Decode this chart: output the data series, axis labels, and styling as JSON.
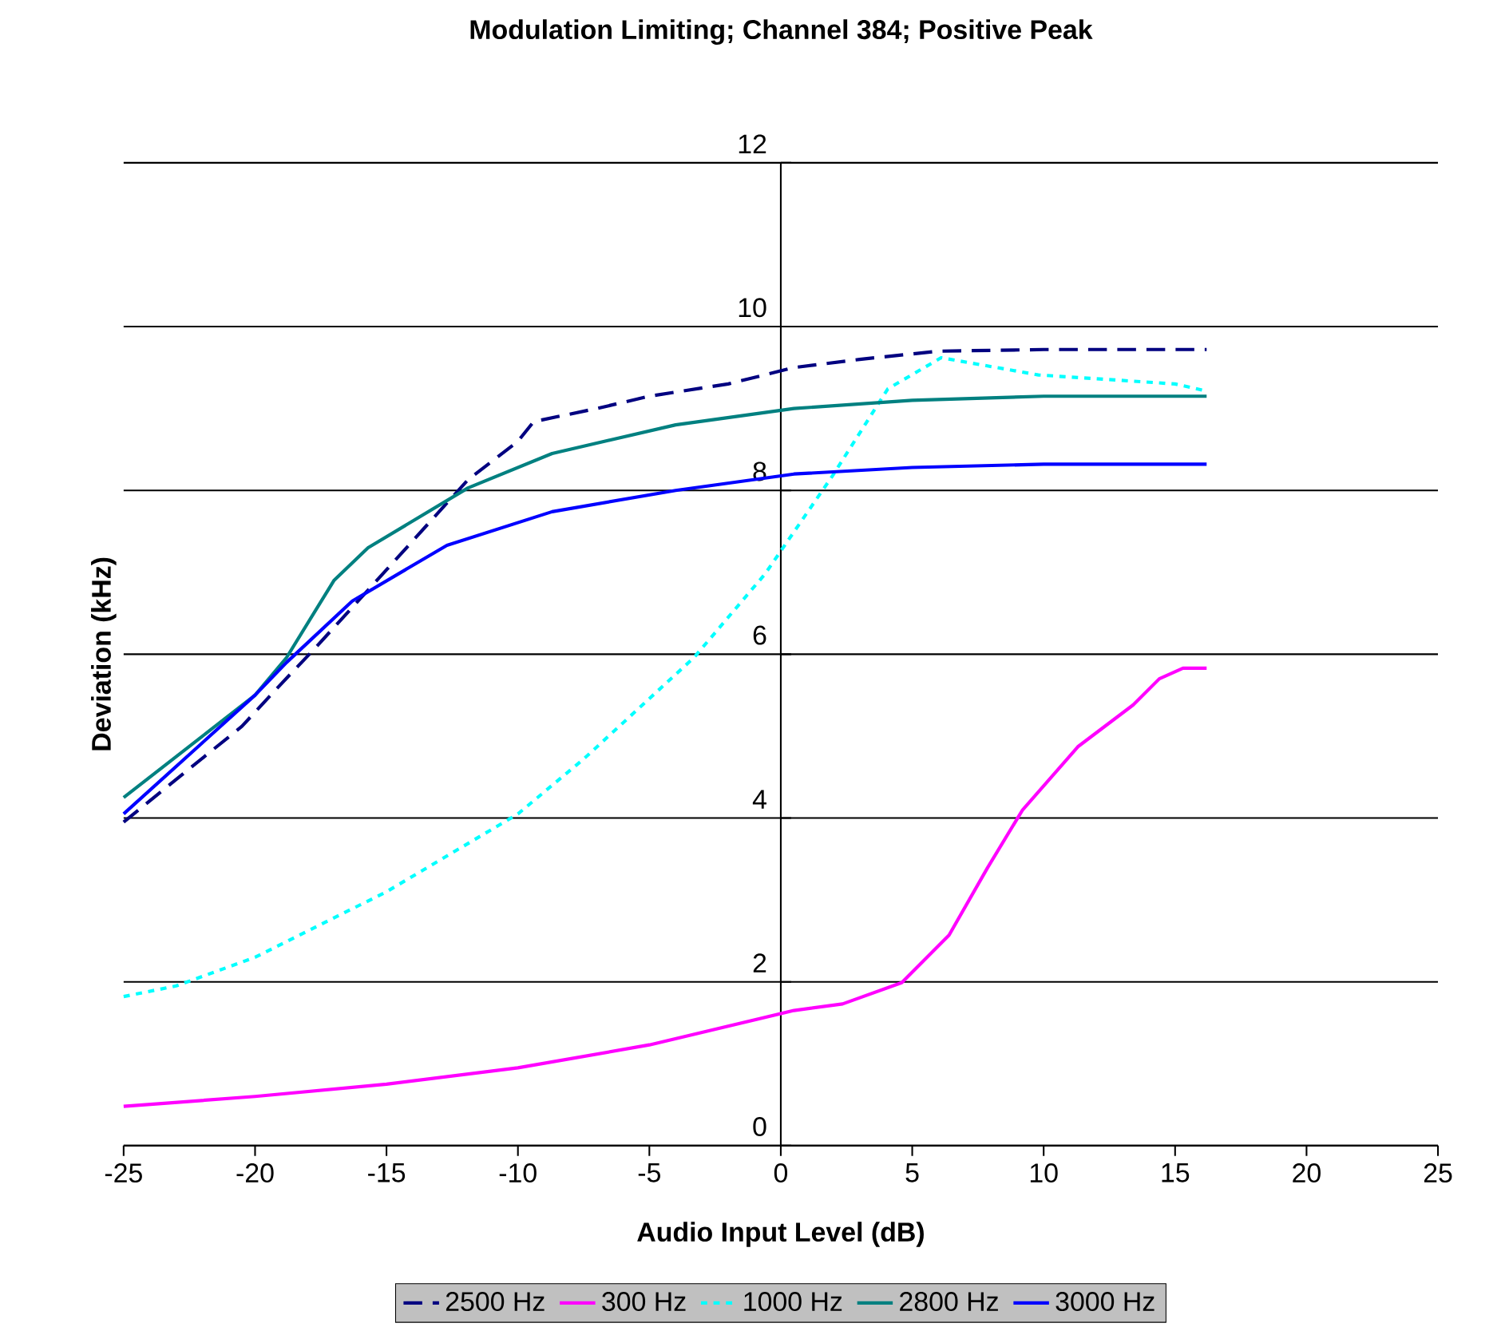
{
  "chart_data": {
    "type": "line",
    "title": "Modulation Limiting; Channel 384; Positive Peak",
    "xlabel": "Audio Input Level (dB)",
    "ylabel": "Deviation (kHz)",
    "xlim": [
      -25,
      25
    ],
    "ylim": [
      0,
      12
    ],
    "xticks": [
      -25,
      -20,
      -15,
      -10,
      -5,
      0,
      5,
      10,
      15,
      20,
      25
    ],
    "yticks": [
      0,
      2,
      4,
      6,
      8,
      10,
      12
    ],
    "grid": "y",
    "legend": "bottom",
    "marker": "none",
    "series": [
      {
        "name": "2500 Hz",
        "color": "#000080",
        "line_style": "dashed",
        "x": [
          -25,
          -23.7,
          -20.5,
          -19,
          -17.7,
          -15,
          -11.9,
          -10,
          -9.4,
          -7,
          -5,
          -2,
          0.5,
          3,
          6,
          10,
          16.2
        ],
        "values": [
          3.95,
          4.29,
          5.12,
          5.64,
          6.08,
          7.03,
          8.13,
          8.6,
          8.84,
          9.0,
          9.15,
          9.3,
          9.5,
          9.6,
          9.7,
          9.72,
          9.72
        ]
      },
      {
        "name": "300 Hz",
        "color": "#ff00ff",
        "line_style": "solid",
        "x": [
          -25,
          -20,
          -15,
          -10,
          -5,
          0.5,
          2.35,
          4.6,
          6.4,
          7.86,
          9.2,
          11.3,
          13.4,
          14.4,
          15.3,
          16.2
        ],
        "values": [
          0.48,
          0.6,
          0.75,
          0.95,
          1.23,
          1.65,
          1.73,
          1.99,
          2.57,
          3.39,
          4.1,
          4.87,
          5.38,
          5.7,
          5.83,
          5.83
        ]
      },
      {
        "name": "1000 Hz",
        "color": "#00ffff",
        "line_style": "dotted",
        "x": [
          -25,
          -23,
          -20,
          -15,
          -10,
          -7.5,
          -3.3,
          -0.6,
          1.95,
          4.07,
          6.1,
          9.8,
          15,
          16.1
        ],
        "values": [
          1.82,
          1.95,
          2.3,
          3.1,
          4.05,
          4.72,
          5.96,
          6.98,
          8.17,
          9.24,
          9.62,
          9.41,
          9.3,
          9.22
        ]
      },
      {
        "name": "2800 Hz",
        "color": "#008080",
        "line_style": "solid",
        "x": [
          -25,
          -20,
          -18.8,
          -17,
          -15.7,
          -11.9,
          -8.7,
          -4,
          0.5,
          5,
          10,
          16.2
        ],
        "values": [
          4.25,
          5.5,
          5.96,
          6.9,
          7.3,
          8.03,
          8.45,
          8.8,
          9.0,
          9.1,
          9.15,
          9.15
        ]
      },
      {
        "name": "3000 Hz",
        "color": "#0000ff",
        "line_style": "solid",
        "x": [
          -25,
          -20,
          -18.8,
          -16.3,
          -12.7,
          -8.7,
          -4,
          0.5,
          5,
          10,
          16.2
        ],
        "values": [
          4.05,
          5.5,
          5.9,
          6.65,
          7.33,
          7.74,
          8.0,
          8.2,
          8.28,
          8.32,
          8.32
        ]
      }
    ]
  }
}
